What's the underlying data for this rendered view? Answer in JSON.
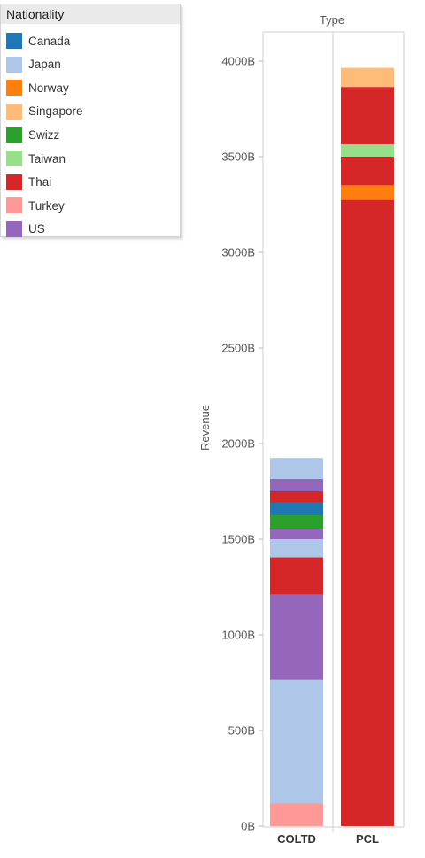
{
  "legend": {
    "title": "Nationality",
    "items": [
      {
        "label": "Canada",
        "color": "#1f77b4"
      },
      {
        "label": "Japan",
        "color": "#aec7e8"
      },
      {
        "label": "Norway",
        "color": "#ff7f0e"
      },
      {
        "label": "Singapore",
        "color": "#ffbb78"
      },
      {
        "label": "Swizz",
        "color": "#2ca02c"
      },
      {
        "label": "Taiwan",
        "color": "#98df8a"
      },
      {
        "label": "Thai",
        "color": "#d62728"
      },
      {
        "label": "Turkey",
        "color": "#ff9896"
      },
      {
        "label": "US",
        "color": "#9467bd"
      }
    ]
  },
  "chart_data": {
    "type": "bar",
    "stacked": true,
    "title": "Type",
    "ylabel": "Revenue",
    "xlabel": "",
    "ylim": [
      0,
      4200
    ],
    "yticks": [
      "0B",
      "500B",
      "1000B",
      "1500B",
      "2000B",
      "2500B",
      "3000B",
      "3500B",
      "4000B"
    ],
    "ytick_values": [
      0,
      500,
      1000,
      1500,
      2000,
      2500,
      3000,
      3500,
      4000
    ],
    "categories": [
      "COLTD",
      "PCL"
    ],
    "stacks": [
      {
        "category": "COLTD",
        "segments": [
          {
            "series": "Turkey",
            "value": 120
          },
          {
            "series": "Japan",
            "value": 645
          },
          {
            "series": "US",
            "value": 445
          },
          {
            "series": "Thai",
            "value": 195
          },
          {
            "series": "Japan",
            "value": 95
          },
          {
            "series": "US",
            "value": 55
          },
          {
            "series": "Swizz",
            "value": 70
          },
          {
            "series": "Canada",
            "value": 65
          },
          {
            "series": "Thai",
            "value": 60
          },
          {
            "series": "US",
            "value": 65
          },
          {
            "series": "Japan",
            "value": 110
          }
        ]
      },
      {
        "category": "PCL",
        "segments": [
          {
            "series": "Thai",
            "value": 3275
          },
          {
            "series": "Norway",
            "value": 75
          },
          {
            "series": "Thai",
            "value": 150
          },
          {
            "series": "Taiwan",
            "value": 65
          },
          {
            "series": "Thai",
            "value": 300
          },
          {
            "series": "Singapore",
            "value": 100
          }
        ]
      }
    ]
  }
}
